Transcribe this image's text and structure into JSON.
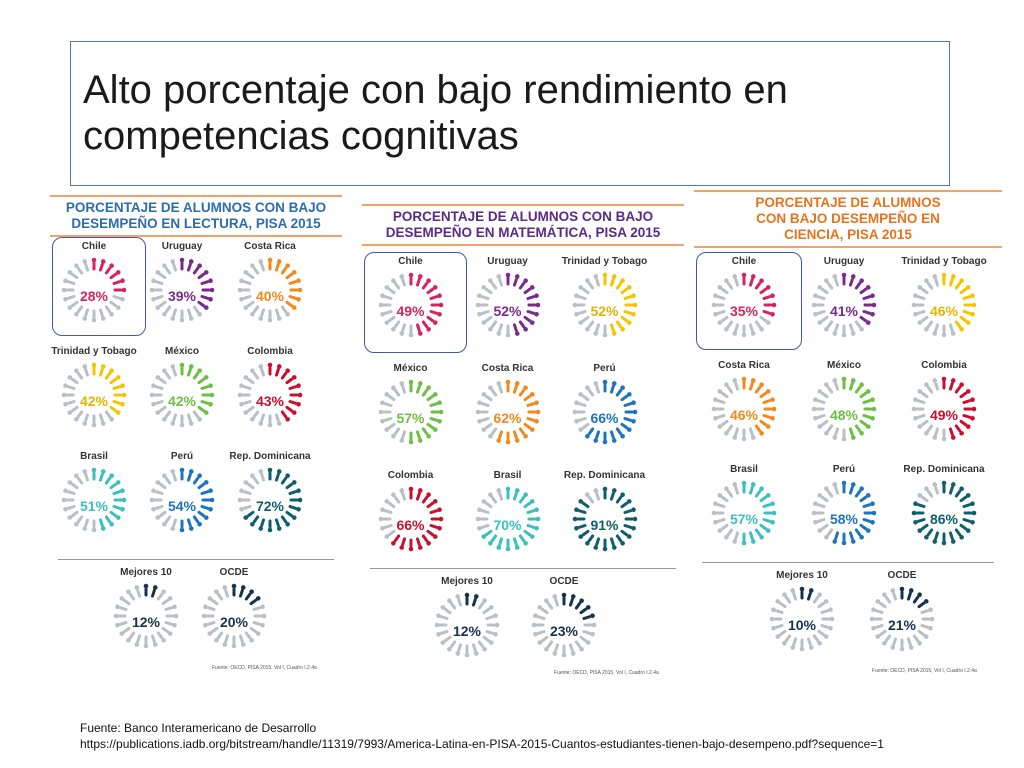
{
  "slide": {
    "title": "Alto porcentaje con bajo rendimiento en competencias cognitivas"
  },
  "panels": [
    {
      "heading_lines": [
        "PORCENTAJE DE ALUMNOS CON BAJO",
        "DESEMPEÑO EN LECTURA, PISA 2015"
      ],
      "heading_color": "#2b6cb0",
      "items": [
        {
          "country": "Chile",
          "pct": "28%",
          "value": 28,
          "color": "#d6245b"
        },
        {
          "country": "Uruguay",
          "pct": "39%",
          "value": 39,
          "color": "#7a2a8c"
        },
        {
          "country": "Costa Rica",
          "pct": "40%",
          "value": 40,
          "color": "#f08a1c"
        },
        {
          "country": "Trinidad y Tobago",
          "pct": "42%",
          "value": 42,
          "color": "#f5c400"
        },
        {
          "country": "México",
          "pct": "42%",
          "value": 42,
          "color": "#6cbf44"
        },
        {
          "country": "Colombia",
          "pct": "43%",
          "value": 43,
          "color": "#c8102e"
        },
        {
          "country": "Brasil",
          "pct": "51%",
          "value": 51,
          "color": "#3bbfbf"
        },
        {
          "country": "Perú",
          "pct": "54%",
          "value": 54,
          "color": "#1e73be"
        },
        {
          "country": "Rep. Dominicana",
          "pct": "72%",
          "value": 72,
          "color": "#0f5e6b"
        },
        {
          "country": "Mejores 10",
          "pct": "12%",
          "value": 12,
          "color": "#16324f"
        },
        {
          "country": "OCDE",
          "pct": "20%",
          "value": 20,
          "color": "#16324f"
        }
      ],
      "source": "Fuente: OECD, PISA 2015, Vol I, Cuadro I.2.4a"
    },
    {
      "heading_lines": [
        "PORCENTAJE DE ALUMNOS CON BAJO",
        "DESEMPEÑO EN MATEMÁTICA, PISA 2015"
      ],
      "heading_color": "#5b2a86",
      "items": [
        {
          "country": "Chile",
          "pct": "49%",
          "value": 49,
          "color": "#d6245b"
        },
        {
          "country": "Uruguay",
          "pct": "52%",
          "value": 52,
          "color": "#7a2a8c"
        },
        {
          "country": "Trinidad y Tobago",
          "pct": "52%",
          "value": 52,
          "color": "#f5c400"
        },
        {
          "country": "México",
          "pct": "57%",
          "value": 57,
          "color": "#6cbf44"
        },
        {
          "country": "Costa Rica",
          "pct": "62%",
          "value": 62,
          "color": "#f08a1c"
        },
        {
          "country": "Perú",
          "pct": "66%",
          "value": 66,
          "color": "#1e73be"
        },
        {
          "country": "Colombia",
          "pct": "66%",
          "value": 66,
          "color": "#c8102e"
        },
        {
          "country": "Brasil",
          "pct": "70%",
          "value": 70,
          "color": "#3bbfbf"
        },
        {
          "country": "Rep. Dominicana",
          "pct": "91%",
          "value": 91,
          "color": "#0f5e6b"
        },
        {
          "country": "Mejores 10",
          "pct": "12%",
          "value": 12,
          "color": "#16324f"
        },
        {
          "country": "OCDE",
          "pct": "23%",
          "value": 23,
          "color": "#16324f"
        }
      ],
      "source": "Fuente: OECD, PISA 2015, Vol I, Cuadro I.2.4a"
    },
    {
      "heading_lines": [
        "PORCENTAJE DE ALUMNOS",
        "CON BAJO DESEMPEÑO EN",
        "CIENCIA, PISA 2015"
      ],
      "heading_color": "#e8731c",
      "items": [
        {
          "country": "Chile",
          "pct": "35%",
          "value": 35,
          "color": "#d6245b"
        },
        {
          "country": "Uruguay",
          "pct": "41%",
          "value": 41,
          "color": "#7a2a8c"
        },
        {
          "country": "Trinidad y Tobago",
          "pct": "46%",
          "value": 46,
          "color": "#f5c400"
        },
        {
          "country": "Costa Rica",
          "pct": "46%",
          "value": 46,
          "color": "#f08a1c"
        },
        {
          "country": "México",
          "pct": "48%",
          "value": 48,
          "color": "#6cbf44"
        },
        {
          "country": "Colombia",
          "pct": "49%",
          "value": 49,
          "color": "#c8102e"
        },
        {
          "country": "Brasil",
          "pct": "57%",
          "value": 57,
          "color": "#3bbfbf"
        },
        {
          "country": "Perú",
          "pct": "58%",
          "value": 58,
          "color": "#1e73be"
        },
        {
          "country": "Rep. Dominicana",
          "pct": "86%",
          "value": 86,
          "color": "#0f5e6b"
        },
        {
          "country": "Mejores 10",
          "pct": "10%",
          "value": 10,
          "color": "#16324f"
        },
        {
          "country": "OCDE",
          "pct": "21%",
          "value": 21,
          "color": "#16324f"
        }
      ],
      "source": "Fuente: OECD, PISA 2015, Vol I, Cuadro I.2.4a"
    }
  ],
  "footer": {
    "line1": "Fuente: Banco Interamericano de Desarrollo",
    "line2": "https://publications.iadb.org/bitstream/handle/11319/7993/America-Latina-en-PISA-2015-Cuantos-estudiantes-tienen-bajo-desempeno.pdf?sequence=1"
  }
}
